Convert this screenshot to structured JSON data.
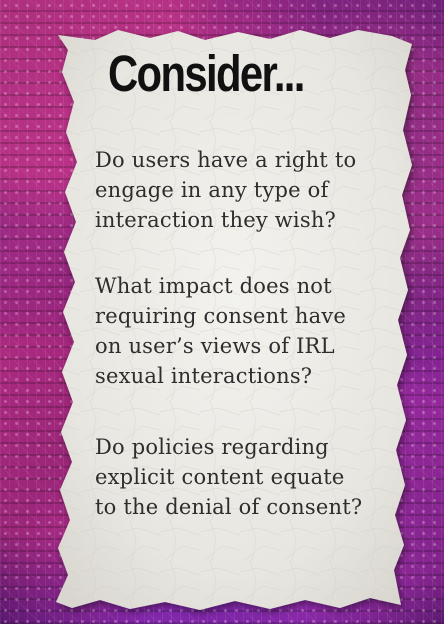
{
  "title": "Consider...",
  "questions": [
    {
      "lines": [
        "Do users have a right to",
        "engage in any type of",
        "interaction they wish?"
      ]
    },
    {
      "lines": [
        "What impact does not",
        "requiring consent have",
        "on user’s views of IRL",
        "sexual interactions?"
      ]
    },
    {
      "lines": [
        "Do policies regarding",
        "explicit content equate",
        "to the denial of consent?"
      ]
    }
  ],
  "colors": {
    "background": "#3a0d52",
    "paper": "#ecebe6",
    "title_text": "#111111",
    "body_text": "#2d2d2d"
  },
  "background_image": "circuit-board-background",
  "paper_style": "torn-paper-note"
}
